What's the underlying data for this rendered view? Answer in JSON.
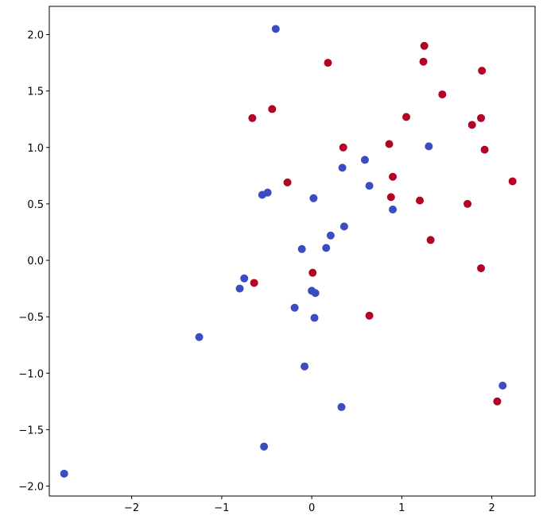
{
  "chart_data": {
    "type": "scatter",
    "series": [
      {
        "color": "#3b4cc0",
        "x": [
          -0.4,
          -2.75,
          -1.25,
          -0.8,
          -0.75,
          -0.55,
          -0.49,
          0.02,
          0.59,
          0.34,
          0.64,
          0.9,
          1.3,
          0.21,
          0.36,
          0.16,
          -0.11,
          0.0,
          0.04,
          -0.19,
          0.03,
          -0.08,
          0.33,
          -0.53,
          2.12
        ],
        "values": [
          2.05,
          -1.89,
          -0.68,
          -0.25,
          -0.16,
          0.58,
          0.6,
          0.55,
          0.89,
          0.82,
          0.66,
          0.45,
          1.01,
          0.22,
          0.3,
          0.11,
          0.1,
          -0.27,
          -0.29,
          -0.42,
          -0.51,
          -0.94,
          -1.3,
          -1.65,
          -1.11
        ]
      },
      {
        "color": "#b40426",
        "x": [
          0.18,
          1.25,
          1.24,
          1.89,
          1.45,
          -0.44,
          -0.66,
          1.05,
          1.88,
          1.78,
          1.92,
          0.35,
          0.86,
          -0.27,
          0.9,
          0.88,
          1.2,
          1.73,
          2.23,
          1.32,
          1.88,
          0.01,
          -0.64,
          0.64,
          2.06
        ],
        "values": [
          1.75,
          1.9,
          1.76,
          1.68,
          1.47,
          1.34,
          1.26,
          1.27,
          1.26,
          1.2,
          0.98,
          1.0,
          1.03,
          0.69,
          0.74,
          0.56,
          0.53,
          0.5,
          0.7,
          0.18,
          -0.07,
          -0.11,
          -0.2,
          -0.49,
          -1.25
        ]
      }
    ],
    "xlim": [
      -2.915,
      2.48
    ],
    "ylim": [
      -2.088,
      2.25
    ],
    "xticks": [
      {
        "value": -2,
        "label": "−2"
      },
      {
        "value": -1,
        "label": "−1"
      },
      {
        "value": 0,
        "label": "0"
      },
      {
        "value": 1,
        "label": "1"
      },
      {
        "value": 2,
        "label": "2"
      }
    ],
    "yticks": [
      {
        "value": -2,
        "label": "−2.0"
      },
      {
        "value": -1.5,
        "label": "−1.5"
      },
      {
        "value": -1,
        "label": "−1.0"
      },
      {
        "value": -0.5,
        "label": "−0.5"
      },
      {
        "value": 0,
        "label": "0.0"
      },
      0.5,
      {
        "value": 1,
        "label": "1.0"
      },
      1.5,
      {
        "value": 2,
        "label": "2.0"
      }
    ],
    "grid": false
  }
}
